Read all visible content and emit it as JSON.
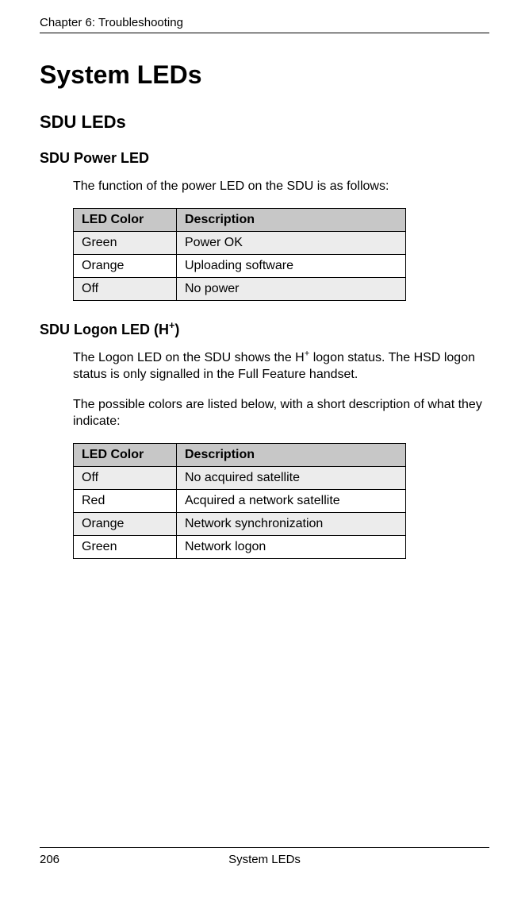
{
  "header": {
    "chapter": "Chapter 6:  Troubleshooting"
  },
  "title": "System LEDs",
  "section1": {
    "heading": "SDU LEDs",
    "sub1": {
      "heading": "SDU Power LED",
      "intro": "The function of the power LED on the SDU is as follows:",
      "table": {
        "header_bg": "#c7c7c7",
        "col1": "LED Color",
        "col2": "Description",
        "rows": [
          {
            "c1": "Green",
            "c2": "Power OK",
            "bg": "#ececec"
          },
          {
            "c1": "Orange",
            "c2": "Uploading software",
            "bg": "#ffffff"
          },
          {
            "c1": "Off",
            "c2": "No power",
            "bg": "#ececec"
          }
        ]
      }
    },
    "sub2": {
      "heading_pre": "SDU Logon LED (H",
      "heading_sup": "+",
      "heading_post": ")",
      "para1_pre": "The Logon LED on the SDU shows the H",
      "para1_sup": "+",
      "para1_post": " logon status. The HSD logon status is only signalled in the Full Feature handset.",
      "para2": "The possible colors are listed below, with a short description of what they indicate:",
      "table": {
        "header_bg": "#c7c7c7",
        "col1": "LED Color",
        "col2": "Description",
        "rows": [
          {
            "c1": "Off",
            "c2": "No acquired satellite",
            "bg": "#ececec"
          },
          {
            "c1": "Red",
            "c2": "Acquired a network satellite",
            "bg": "#ffffff"
          },
          {
            "c1": "Orange",
            "c2": "Network synchronization",
            "bg": "#ececec"
          },
          {
            "c1": "Green",
            "c2": "Network logon",
            "bg": "#ffffff"
          }
        ]
      }
    }
  },
  "footer": {
    "page_number": "206",
    "section_title": "System LEDs"
  }
}
